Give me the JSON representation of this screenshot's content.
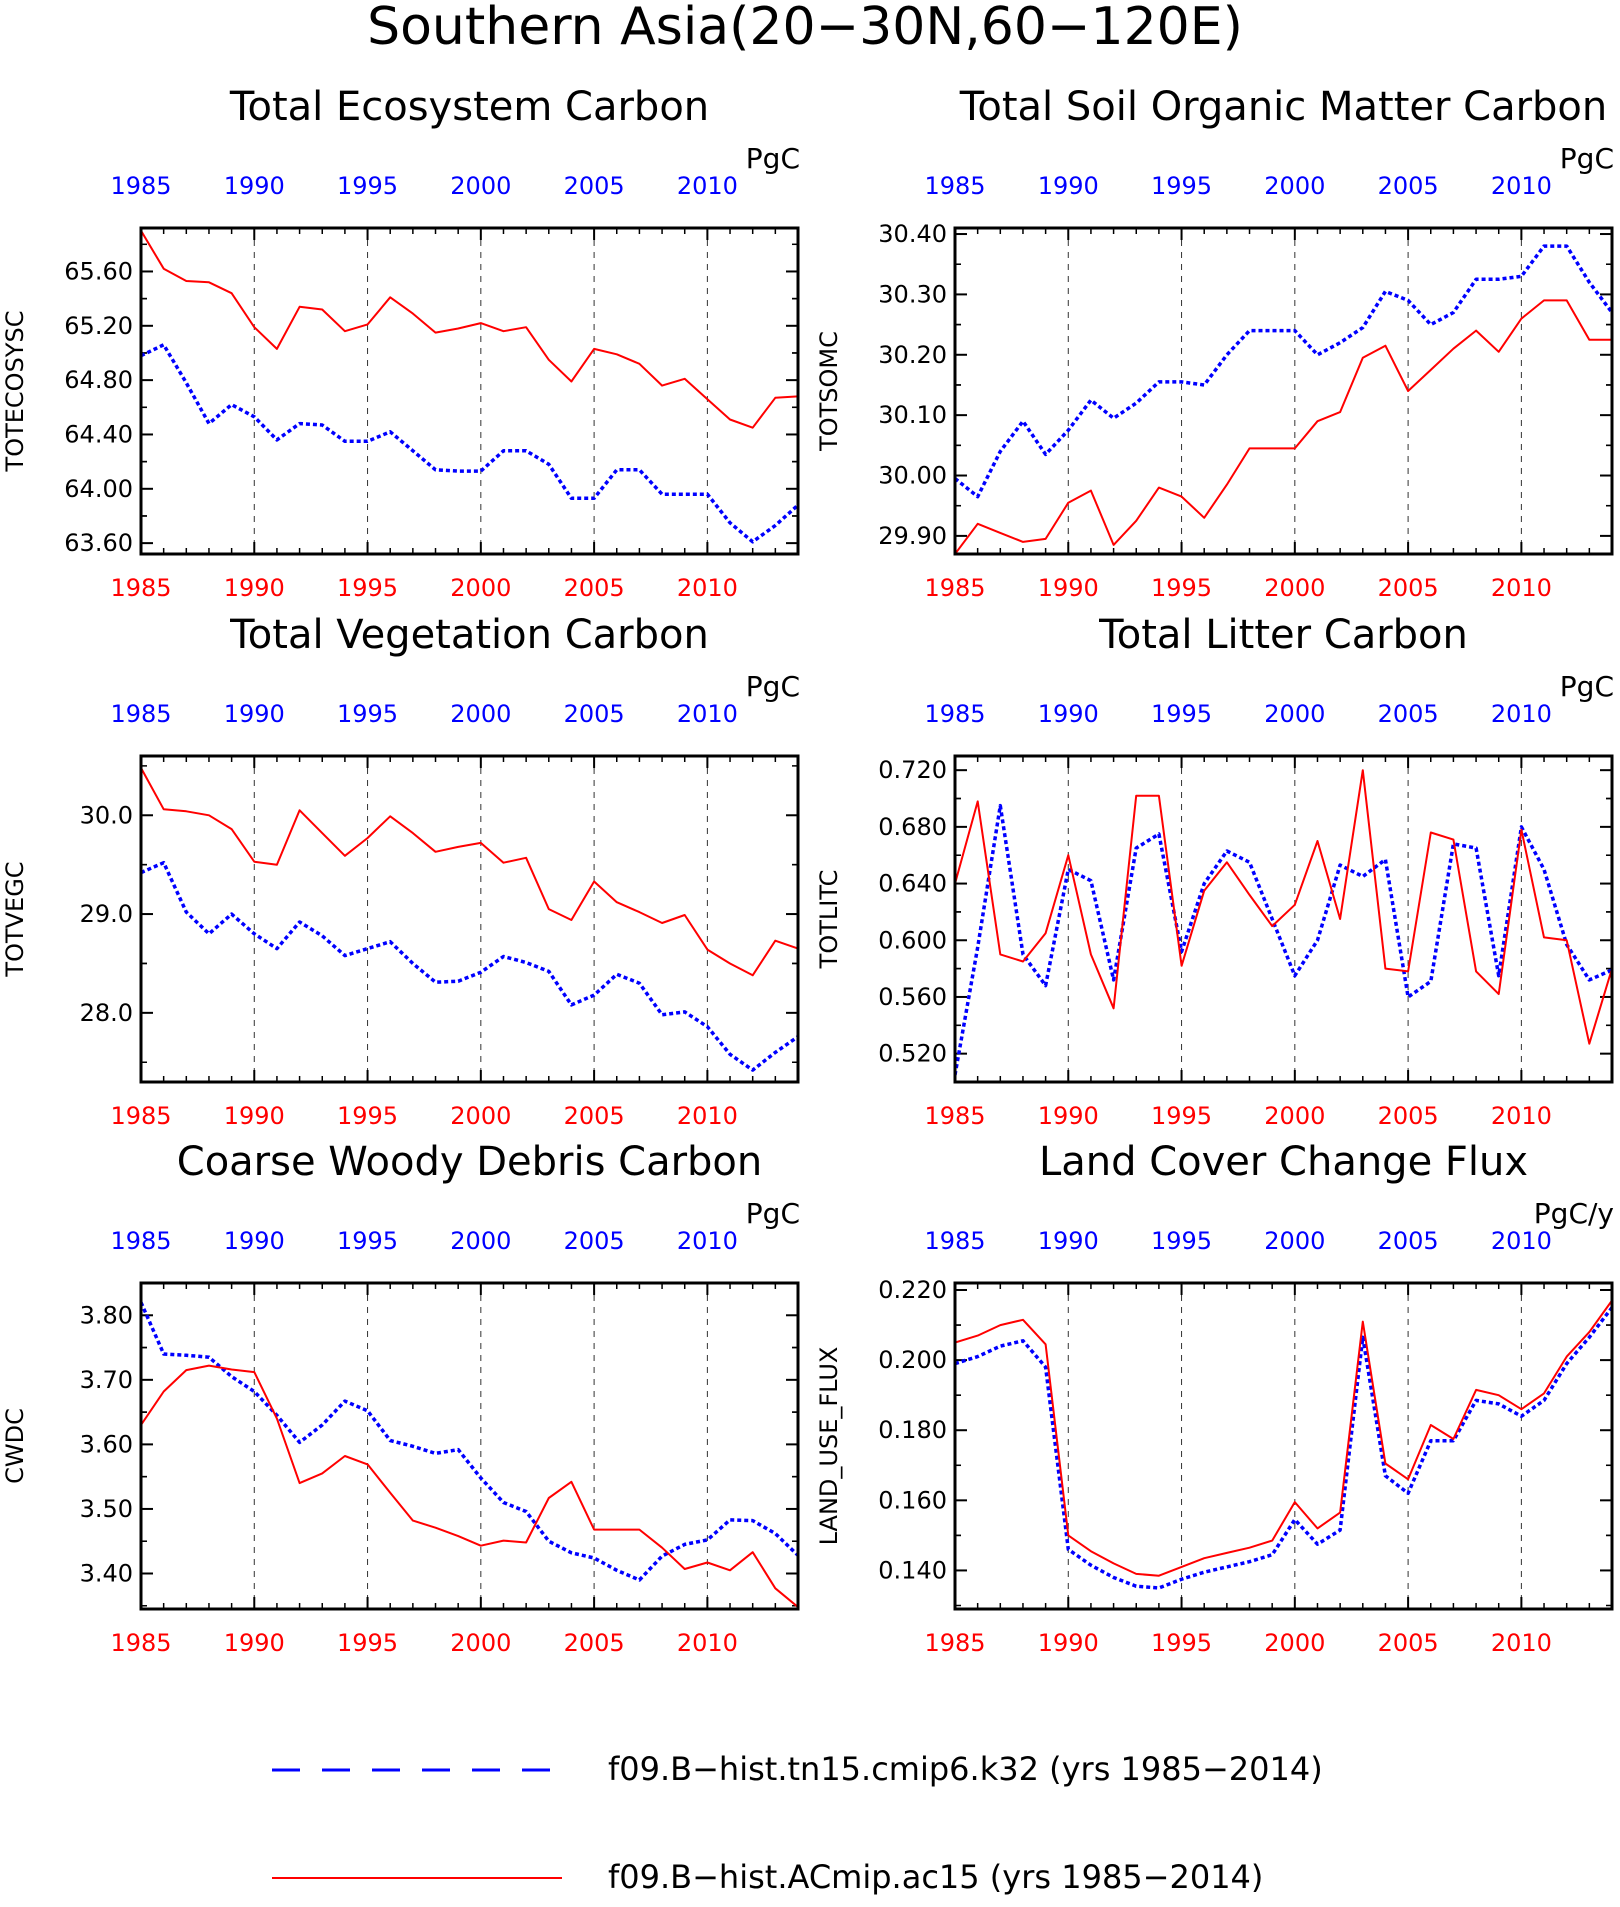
{
  "page_title": "Southern Asia(20−30N,60−120E)",
  "colors": {
    "run_a": "#0000ff",
    "run_b": "#ff0000",
    "axis": "#000000"
  },
  "x_ticks": [
    "1985",
    "1990",
    "1995",
    "2000",
    "2005",
    "2010"
  ],
  "legend": {
    "items": [
      {
        "label": "f09.B−hist.tn15.cmip6.k32 (yrs 1985−2014)",
        "style": "dashed",
        "color": "#0000ff"
      },
      {
        "label": "f09.B−hist.ACmip.ac15 (yrs 1985−2014)",
        "style": "solid",
        "color": "#ff0000"
      }
    ]
  },
  "chart_data": [
    {
      "type": "line",
      "title": "Total Ecosystem Carbon",
      "ylabel": "TOTECOSYSC",
      "units": "PgC",
      "xlim": [
        1985,
        2014
      ],
      "ylim": [
        63.52,
        65.92
      ],
      "yticks": [
        63.6,
        64.0,
        64.4,
        64.8,
        65.2,
        65.6
      ],
      "ytick_labels": [
        "63.60",
        "64.00",
        "64.40",
        "64.80",
        "65.20",
        "65.60"
      ],
      "x": [
        1985,
        1986,
        1987,
        1988,
        1989,
        1990,
        1991,
        1992,
        1993,
        1994,
        1995,
        1996,
        1997,
        1998,
        1999,
        2000,
        2001,
        2002,
        2003,
        2004,
        2005,
        2006,
        2007,
        2008,
        2009,
        2010,
        2011,
        2012,
        2013,
        2014
      ],
      "series": [
        {
          "color": "#0000ff",
          "style": "dashed",
          "values": [
            64.98,
            65.06,
            64.78,
            64.48,
            64.62,
            64.53,
            64.36,
            64.48,
            64.47,
            64.35,
            64.35,
            64.42,
            64.28,
            64.14,
            64.13,
            64.13,
            64.28,
            64.28,
            64.18,
            63.93,
            63.93,
            64.14,
            64.14,
            63.96,
            63.96,
            63.96,
            63.75,
            63.61,
            63.73,
            63.88
          ]
        },
        {
          "color": "#ff0000",
          "style": "solid",
          "values": [
            65.9,
            65.62,
            65.53,
            65.52,
            65.44,
            65.19,
            65.03,
            65.34,
            65.32,
            65.16,
            65.21,
            65.41,
            65.29,
            65.15,
            65.18,
            65.22,
            65.16,
            65.19,
            64.95,
            64.79,
            65.03,
            64.99,
            64.92,
            64.76,
            64.81,
            64.66,
            64.51,
            64.45,
            64.67,
            64.68
          ]
        }
      ]
    },
    {
      "type": "line",
      "title": "Total Soil Organic Matter Carbon",
      "ylabel": "TOTSOMC",
      "units": "PgC",
      "xlim": [
        1985,
        2014
      ],
      "ylim": [
        29.87,
        30.41
      ],
      "yticks": [
        29.9,
        30.0,
        30.1,
        30.2,
        30.3,
        30.4
      ],
      "ytick_labels": [
        "29.90",
        "30.00",
        "30.10",
        "30.20",
        "30.30",
        "30.40"
      ],
      "x": [
        1985,
        1986,
        1987,
        1988,
        1989,
        1990,
        1991,
        1992,
        1993,
        1994,
        1995,
        1996,
        1997,
        1998,
        1999,
        2000,
        2001,
        2002,
        2003,
        2004,
        2005,
        2006,
        2007,
        2008,
        2009,
        2010,
        2011,
        2012,
        2013,
        2014
      ],
      "series": [
        {
          "color": "#0000ff",
          "style": "dashed",
          "values": [
            29.995,
            29.965,
            30.04,
            30.09,
            30.035,
            30.075,
            30.125,
            30.095,
            30.12,
            30.155,
            30.155,
            30.15,
            30.2,
            30.24,
            30.24,
            30.24,
            30.2,
            30.22,
            30.245,
            30.305,
            30.29,
            30.25,
            30.27,
            30.325,
            30.325,
            30.33,
            30.38,
            30.38,
            30.32,
            30.27
          ]
        },
        {
          "color": "#ff0000",
          "style": "solid",
          "values": [
            29.87,
            29.92,
            29.905,
            29.89,
            29.895,
            29.955,
            29.975,
            29.885,
            29.925,
            29.98,
            29.965,
            29.93,
            29.985,
            30.045,
            30.045,
            30.045,
            30.09,
            30.105,
            30.195,
            30.215,
            30.14,
            30.175,
            30.21,
            30.24,
            30.205,
            30.26,
            30.29,
            30.29,
            30.225,
            30.225
          ]
        }
      ]
    },
    {
      "type": "line",
      "title": "Total Vegetation Carbon",
      "ylabel": "TOTVEGC",
      "units": "PgC",
      "xlim": [
        1985,
        2014
      ],
      "ylim": [
        27.3,
        30.6
      ],
      "yticks": [
        28.0,
        29.0,
        30.0
      ],
      "ytick_labels": [
        "28.0",
        "29.0",
        "30.0"
      ],
      "x": [
        1985,
        1986,
        1987,
        1988,
        1989,
        1990,
        1991,
        1992,
        1993,
        1994,
        1995,
        1996,
        1997,
        1998,
        1999,
        2000,
        2001,
        2002,
        2003,
        2004,
        2005,
        2006,
        2007,
        2008,
        2009,
        2010,
        2011,
        2012,
        2013,
        2014
      ],
      "series": [
        {
          "color": "#0000ff",
          "style": "dashed",
          "values": [
            29.42,
            29.52,
            29.02,
            28.8,
            29.0,
            28.8,
            28.65,
            28.92,
            28.78,
            28.58,
            28.65,
            28.72,
            28.5,
            28.31,
            28.32,
            28.41,
            28.57,
            28.51,
            28.42,
            28.08,
            28.18,
            28.39,
            28.3,
            27.98,
            28.01,
            27.86,
            27.58,
            27.42,
            27.6,
            27.76
          ]
        },
        {
          "color": "#ff0000",
          "style": "solid",
          "values": [
            30.48,
            30.06,
            30.04,
            30.0,
            29.86,
            29.53,
            29.5,
            30.05,
            29.82,
            29.59,
            29.77,
            29.99,
            29.82,
            29.63,
            29.68,
            29.72,
            29.52,
            29.57,
            29.05,
            28.94,
            29.33,
            29.12,
            29.02,
            28.91,
            28.99,
            28.64,
            28.5,
            28.38,
            28.73,
            28.65
          ]
        }
      ]
    },
    {
      "type": "line",
      "title": "Total Litter Carbon",
      "ylabel": "TOTLITC",
      "units": "PgC",
      "xlim": [
        1985,
        2014
      ],
      "ylim": [
        0.5,
        0.73
      ],
      "yticks": [
        0.52,
        0.56,
        0.6,
        0.64,
        0.68,
        0.72
      ],
      "ytick_labels": [
        "0.520",
        "0.560",
        "0.600",
        "0.640",
        "0.680",
        "0.720"
      ],
      "x": [
        1985,
        1986,
        1987,
        1988,
        1989,
        1990,
        1991,
        1992,
        1993,
        1994,
        1995,
        1996,
        1997,
        1998,
        1999,
        2000,
        2001,
        2002,
        2003,
        2004,
        2005,
        2006,
        2007,
        2008,
        2009,
        2010,
        2011,
        2012,
        2013,
        2014
      ],
      "series": [
        {
          "color": "#0000ff",
          "style": "dashed",
          "values": [
            0.505,
            0.595,
            0.695,
            0.59,
            0.568,
            0.65,
            0.642,
            0.572,
            0.665,
            0.675,
            0.592,
            0.64,
            0.663,
            0.655,
            0.615,
            0.575,
            0.6,
            0.653,
            0.645,
            0.657,
            0.56,
            0.571,
            0.668,
            0.665,
            0.575,
            0.68,
            0.65,
            0.597,
            0.572,
            0.579
          ]
        },
        {
          "color": "#ff0000",
          "style": "solid",
          "values": [
            0.64,
            0.698,
            0.59,
            0.585,
            0.605,
            0.66,
            0.59,
            0.552,
            0.702,
            0.702,
            0.582,
            0.635,
            0.655,
            0.632,
            0.61,
            0.625,
            0.67,
            0.615,
            0.72,
            0.58,
            0.578,
            0.676,
            0.671,
            0.578,
            0.562,
            0.678,
            0.602,
            0.6,
            0.527,
            0.58
          ]
        }
      ]
    },
    {
      "type": "line",
      "title": "Coarse Woody Debris Carbon",
      "ylabel": "CWDC",
      "units": "PgC",
      "xlim": [
        1985,
        2014
      ],
      "ylim": [
        3.345,
        3.85
      ],
      "yticks": [
        3.4,
        3.5,
        3.6,
        3.7,
        3.8
      ],
      "ytick_labels": [
        "3.40",
        "3.50",
        "3.60",
        "3.70",
        "3.80"
      ],
      "x": [
        1985,
        1986,
        1987,
        1988,
        1989,
        1990,
        1991,
        1992,
        1993,
        1994,
        1995,
        1996,
        1997,
        1998,
        1999,
        2000,
        2001,
        2002,
        2003,
        2004,
        2005,
        2006,
        2007,
        2008,
        2009,
        2010,
        2011,
        2012,
        2013,
        2014
      ],
      "series": [
        {
          "color": "#0000ff",
          "style": "dashed",
          "values": [
            3.82,
            3.74,
            3.738,
            3.735,
            3.705,
            3.682,
            3.645,
            3.603,
            3.63,
            3.667,
            3.652,
            3.606,
            3.597,
            3.586,
            3.592,
            3.548,
            3.51,
            3.496,
            3.45,
            3.432,
            3.424,
            3.405,
            3.39,
            3.427,
            3.445,
            3.452,
            3.483,
            3.482,
            3.462,
            3.428
          ]
        },
        {
          "color": "#ff0000",
          "style": "solid",
          "values": [
            3.63,
            3.682,
            3.715,
            3.722,
            3.716,
            3.712,
            3.64,
            3.54,
            3.555,
            3.582,
            3.569,
            3.525,
            3.482,
            3.471,
            3.458,
            3.443,
            3.451,
            3.448,
            3.517,
            3.542,
            3.468,
            3.468,
            3.468,
            3.44,
            3.407,
            3.417,
            3.405,
            3.433,
            3.377,
            3.348
          ]
        }
      ]
    },
    {
      "type": "line",
      "title": "Land Cover Change Flux",
      "ylabel": "LAND_USE_FLUX",
      "units": "PgC/y",
      "xlim": [
        1985,
        2014
      ],
      "ylim": [
        0.129,
        0.222
      ],
      "yticks": [
        0.14,
        0.16,
        0.18,
        0.2,
        0.22
      ],
      "ytick_labels": [
        "0.140",
        "0.160",
        "0.180",
        "0.200",
        "0.220"
      ],
      "x": [
        1985,
        1986,
        1987,
        1988,
        1989,
        1990,
        1991,
        1992,
        1993,
        1994,
        1995,
        1996,
        1997,
        1998,
        1999,
        2000,
        2001,
        2002,
        2003,
        2004,
        2005,
        2006,
        2007,
        2008,
        2009,
        2010,
        2011,
        2012,
        2013,
        2014
      ],
      "series": [
        {
          "color": "#0000ff",
          "style": "dashed",
          "values": [
            0.199,
            0.201,
            0.204,
            0.2055,
            0.198,
            0.146,
            0.1415,
            0.138,
            0.1355,
            0.135,
            0.1375,
            0.1395,
            0.141,
            0.1425,
            0.1445,
            0.1545,
            0.1475,
            0.1515,
            0.2065,
            0.167,
            0.162,
            0.177,
            0.177,
            0.1885,
            0.1875,
            0.184,
            0.1885,
            0.199,
            0.2065,
            0.215
          ]
        },
        {
          "color": "#ff0000",
          "style": "solid",
          "values": [
            0.205,
            0.207,
            0.21,
            0.2115,
            0.2045,
            0.15,
            0.1455,
            0.142,
            0.139,
            0.1385,
            0.141,
            0.1435,
            0.145,
            0.1465,
            0.1485,
            0.1595,
            0.152,
            0.1565,
            0.211,
            0.1705,
            0.166,
            0.1815,
            0.1775,
            0.1915,
            0.19,
            0.186,
            0.1905,
            0.201,
            0.208,
            0.217
          ]
        }
      ]
    }
  ]
}
